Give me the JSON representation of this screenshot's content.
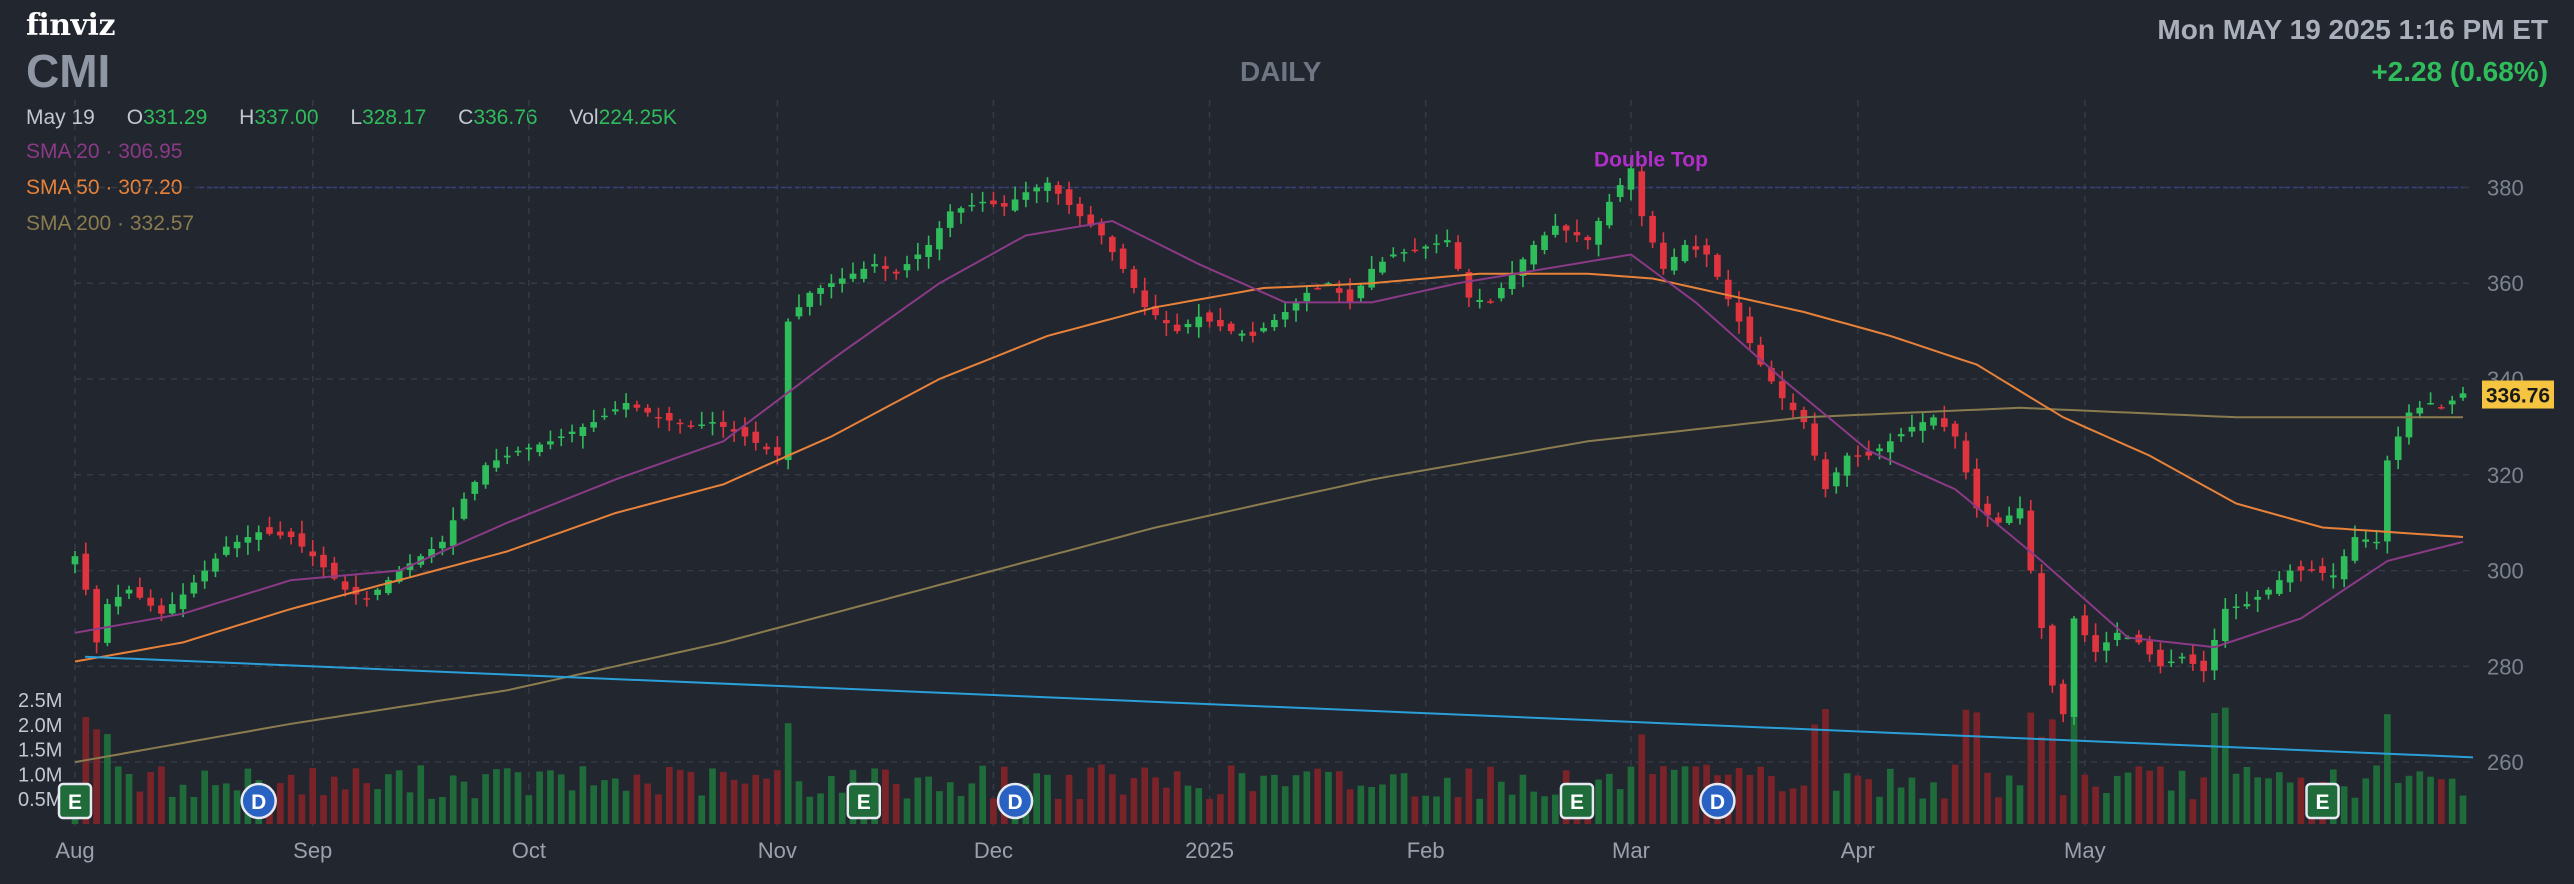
{
  "header": {
    "brand": "finviz",
    "ticker": "CMI",
    "timeframe": "DAILY",
    "datetime": "Mon MAY 19 2025 1:16 PM ET",
    "change": "+2.28 (0.68%)"
  },
  "ohlc": {
    "date": "May 19",
    "open_label": "O",
    "open": "331.29",
    "high_label": "H",
    "high": "337.00",
    "low_label": "L",
    "low": "328.17",
    "close_label": "C",
    "close": "336.76",
    "vol_label": "Vol",
    "vol": "224.25K"
  },
  "sma": {
    "sma20": "SMA 20 · 306.95",
    "sma50": "SMA 50 · 307.20",
    "sma200": "SMA 200 · 332.57"
  },
  "colors": {
    "background": "#22262f",
    "up": "#2fbd5c",
    "down": "#e0343f",
    "sma20": "#8a3a86",
    "sma50": "#e8823a",
    "sma200": "#8a7c4e",
    "trendline": "#2a9fd8",
    "price_tag": "#f5c542"
  },
  "chart_data": {
    "type": "candlestick",
    "y_ticks": [
      260,
      280,
      300,
      320,
      340,
      360,
      380
    ],
    "ylim": [
      250,
      392
    ],
    "x_labels": [
      {
        "label": "Aug",
        "index": 0
      },
      {
        "label": "Sep",
        "index": 22
      },
      {
        "label": "Oct",
        "index": 42
      },
      {
        "label": "Nov",
        "index": 65
      },
      {
        "label": "Dec",
        "index": 85
      },
      {
        "label": "2025",
        "index": 105
      },
      {
        "label": "Feb",
        "index": 125
      },
      {
        "label": "Mar",
        "index": 144
      },
      {
        "label": "Apr",
        "index": 165
      },
      {
        "label": "May",
        "index": 186
      }
    ],
    "price_anchors": [
      [
        0,
        303
      ],
      [
        1,
        296
      ],
      [
        2,
        285
      ],
      [
        3,
        293
      ],
      [
        5,
        296
      ],
      [
        8,
        291
      ],
      [
        10,
        295
      ],
      [
        14,
        305
      ],
      [
        17,
        308
      ],
      [
        20,
        307
      ],
      [
        22,
        303
      ],
      [
        25,
        296
      ],
      [
        27,
        294
      ],
      [
        30,
        300
      ],
      [
        34,
        306
      ],
      [
        36,
        315
      ],
      [
        38,
        322
      ],
      [
        41,
        325
      ],
      [
        44,
        327
      ],
      [
        48,
        331
      ],
      [
        51,
        335
      ],
      [
        54,
        332
      ],
      [
        57,
        330
      ],
      [
        59,
        331
      ],
      [
        62,
        328
      ],
      [
        65,
        324
      ],
      [
        66,
        352
      ],
      [
        68,
        358
      ],
      [
        71,
        361
      ],
      [
        74,
        364
      ],
      [
        76,
        362
      ],
      [
        79,
        368
      ],
      [
        81,
        375
      ],
      [
        84,
        377
      ],
      [
        86,
        376
      ],
      [
        88,
        379
      ],
      [
        90,
        381
      ],
      [
        93,
        374
      ],
      [
        95,
        370
      ],
      [
        97,
        363
      ],
      [
        99,
        355
      ],
      [
        102,
        350
      ],
      [
        104,
        353
      ],
      [
        107,
        350
      ],
      [
        109,
        349
      ],
      [
        112,
        354
      ],
      [
        114,
        358
      ],
      [
        116,
        360
      ],
      [
        118,
        356
      ],
      [
        120,
        363
      ],
      [
        122,
        366
      ],
      [
        124,
        367
      ],
      [
        127,
        369
      ],
      [
        129,
        357
      ],
      [
        131,
        356
      ],
      [
        133,
        362
      ],
      [
        135,
        368
      ],
      [
        137,
        372
      ],
      [
        140,
        369
      ],
      [
        142,
        377
      ],
      [
        144,
        384
      ],
      [
        145,
        374
      ],
      [
        147,
        363
      ],
      [
        149,
        368
      ],
      [
        151,
        366
      ],
      [
        154,
        352
      ],
      [
        156,
        343
      ],
      [
        158,
        336
      ],
      [
        160,
        331
      ],
      [
        162,
        317
      ],
      [
        164,
        324
      ],
      [
        166,
        324
      ],
      [
        168,
        327
      ],
      [
        170,
        330
      ],
      [
        172,
        332
      ],
      [
        174,
        328
      ],
      [
        176,
        313
      ],
      [
        178,
        310
      ],
      [
        180,
        313
      ],
      [
        181,
        300
      ],
      [
        183,
        276
      ],
      [
        184,
        270
      ],
      [
        185,
        290
      ],
      [
        187,
        283
      ],
      [
        189,
        287
      ],
      [
        191,
        285
      ],
      [
        193,
        280
      ],
      [
        195,
        282
      ],
      [
        197,
        279
      ],
      [
        199,
        292
      ],
      [
        201,
        293
      ],
      [
        203,
        296
      ],
      [
        205,
        300
      ],
      [
        207,
        300
      ],
      [
        209,
        299
      ],
      [
        211,
        307
      ],
      [
        213,
        306
      ],
      [
        214,
        323
      ],
      [
        216,
        333
      ],
      [
        218,
        335
      ],
      [
        219,
        334
      ],
      [
        221,
        337
      ]
    ],
    "sma20_anchors": [
      [
        0,
        287
      ],
      [
        10,
        291
      ],
      [
        20,
        298
      ],
      [
        30,
        300
      ],
      [
        40,
        310
      ],
      [
        50,
        319
      ],
      [
        60,
        327
      ],
      [
        70,
        344
      ],
      [
        80,
        360
      ],
      [
        88,
        370
      ],
      [
        96,
        373
      ],
      [
        104,
        364
      ],
      [
        112,
        356
      ],
      [
        120,
        356
      ],
      [
        128,
        360
      ],
      [
        136,
        363
      ],
      [
        144,
        366
      ],
      [
        150,
        356
      ],
      [
        158,
        340
      ],
      [
        166,
        325
      ],
      [
        174,
        317
      ],
      [
        182,
        302
      ],
      [
        190,
        286
      ],
      [
        198,
        284
      ],
      [
        206,
        290
      ],
      [
        214,
        302
      ],
      [
        221,
        306
      ]
    ],
    "sma50_anchors": [
      [
        0,
        281
      ],
      [
        10,
        285
      ],
      [
        20,
        292
      ],
      [
        30,
        298
      ],
      [
        40,
        304
      ],
      [
        50,
        312
      ],
      [
        60,
        318
      ],
      [
        70,
        328
      ],
      [
        80,
        340
      ],
      [
        90,
        349
      ],
      [
        100,
        355
      ],
      [
        110,
        359
      ],
      [
        120,
        360
      ],
      [
        130,
        362
      ],
      [
        140,
        362
      ],
      [
        146,
        361
      ],
      [
        152,
        358
      ],
      [
        160,
        354
      ],
      [
        168,
        349
      ],
      [
        176,
        343
      ],
      [
        184,
        332
      ],
      [
        192,
        324
      ],
      [
        200,
        314
      ],
      [
        208,
        309
      ],
      [
        221,
        307
      ]
    ],
    "sma200_anchors": [
      [
        0,
        260
      ],
      [
        20,
        268
      ],
      [
        40,
        275
      ],
      [
        60,
        285
      ],
      [
        80,
        297
      ],
      [
        100,
        309
      ],
      [
        120,
        319
      ],
      [
        140,
        327
      ],
      [
        160,
        332
      ],
      [
        180,
        334
      ],
      [
        200,
        332
      ],
      [
        221,
        332
      ]
    ],
    "trendline": {
      "from_index": 0,
      "from_value": 282,
      "to_index": 221,
      "to_value": 261
    },
    "horizontal_line_value": 380,
    "annotation": {
      "text": "Double Top",
      "index": 144,
      "value": 386
    },
    "last_price": "336.76",
    "volume_ticks": [
      "2.5M",
      "2.0M",
      "1.5M",
      "1.0M",
      "0.5M"
    ],
    "volume_max": 2.5,
    "event_markers": [
      {
        "label": "E",
        "index": 0
      },
      {
        "label": "D",
        "index": 17
      },
      {
        "label": "E",
        "index": 73
      },
      {
        "label": "D",
        "index": 87
      },
      {
        "label": "E",
        "index": 139
      },
      {
        "label": "D",
        "index": 152
      },
      {
        "label": "E",
        "index": 208
      }
    ],
    "bar_count": 222
  }
}
